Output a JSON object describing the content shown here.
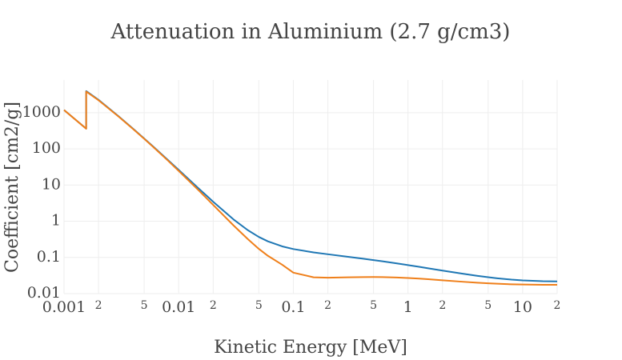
{
  "chart_data": {
    "type": "line",
    "title": "Attenuation in Aluminium (2.7 g/cm3)",
    "xlabel": "Kinetic Energy [MeV]",
    "ylabel": "Coefficient [cm2/g]",
    "xscale": "log",
    "yscale": "log",
    "grid": true,
    "xlim": [
      0.001,
      20
    ],
    "ylim": [
      0.01,
      8000
    ],
    "xticks": [
      0.001,
      {
        "value": 0.002,
        "label": "2"
      },
      {
        "value": 0.005,
        "label": "5"
      },
      0.01,
      {
        "value": 0.02,
        "label": "2"
      },
      {
        "value": 0.05,
        "label": "5"
      },
      0.1,
      {
        "value": 0.2,
        "label": "2"
      },
      {
        "value": 0.5,
        "label": "5"
      },
      1,
      {
        "value": 2,
        "label": "2"
      },
      {
        "value": 5,
        "label": "5"
      },
      10,
      {
        "value": 20,
        "label": "2"
      }
    ],
    "yticks": [
      0.01,
      0.1,
      1,
      10,
      100,
      1000
    ],
    "x": [
      0.001,
      0.0015,
      0.00156,
      0.00156,
      0.002,
      0.003,
      0.004,
      0.005,
      0.006,
      0.008,
      0.01,
      0.015,
      0.02,
      0.03,
      0.04,
      0.05,
      0.06,
      0.08,
      0.1,
      0.15,
      0.2,
      0.3,
      0.4,
      0.5,
      0.6,
      0.8,
      1,
      1.25,
      1.5,
      2,
      3,
      4,
      5,
      6,
      8,
      10,
      15,
      20
    ],
    "series": [
      {
        "color": "#1f77b4",
        "values": [
          1185,
          402.2,
          362.1,
          3957,
          2263,
          788,
          360.5,
          193.4,
          115.3,
          50.33,
          26.23,
          7.955,
          3.441,
          1.128,
          0.5685,
          0.3681,
          0.2778,
          0.2018,
          0.1704,
          0.1378,
          0.1223,
          0.1042,
          0.09276,
          0.08445,
          0.07802,
          0.06841,
          0.06146,
          0.05496,
          0.05006,
          0.04324,
          0.03541,
          0.03106,
          0.02836,
          0.02655,
          0.02437,
          0.02318,
          0.02195,
          0.02168
        ]
      },
      {
        "color": "#ef7f1a",
        "values": [
          1183,
          400.8,
          360.5,
          3829,
          2204,
          773.2,
          354.5,
          189.7,
          112.5,
          48.44,
          24.6,
          7.052,
          2.817,
          0.7726,
          0.3232,
          0.1724,
          0.1107,
          0.06277,
          0.03794,
          0.02827,
          0.02745,
          0.02816,
          0.02862,
          0.02868,
          0.02851,
          0.02778,
          0.02698,
          0.02603,
          0.02505,
          0.02336,
          0.02125,
          0.01999,
          0.01923,
          0.01875,
          0.0181,
          0.0178,
          0.0175,
          0.01748
        ]
      }
    ]
  }
}
